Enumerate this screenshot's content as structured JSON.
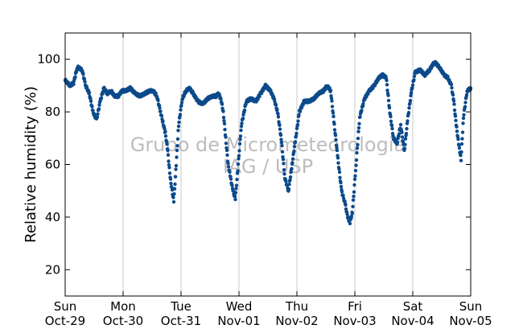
{
  "chart_data": {
    "type": "scatter",
    "title": "",
    "xlabel": "",
    "ylabel": "Relative humidity (%)",
    "watermark": [
      "Grupo de Micrometeorologia",
      "IAG / USP"
    ],
    "ylim": [
      10,
      110
    ],
    "yticks": [
      20,
      40,
      60,
      80,
      100
    ],
    "xlim": [
      "2017-10-29 00:00",
      "2017-11-05 00:00"
    ],
    "xticks": [
      {
        "day": "Sun",
        "date": "Oct-29"
      },
      {
        "day": "Mon",
        "date": "Oct-30"
      },
      {
        "day": "Tue",
        "date": "Oct-31"
      },
      {
        "day": "Wed",
        "date": "Nov-01"
      },
      {
        "day": "Thu",
        "date": "Nov-02"
      },
      {
        "day": "Fri",
        "date": "Nov-03"
      },
      {
        "day": "Sat",
        "date": "Nov-04"
      },
      {
        "day": "Sun",
        "date": "Nov-05"
      }
    ],
    "vertical_grid": true,
    "horizontal_grid": false,
    "marker_color": "#0c4a8a",
    "grid_color": "#c8c8c8",
    "series": [
      {
        "x": [
          "2017-10-29 00:00",
          "2017-10-29 02:00",
          "2017-10-29 03:30",
          "2017-10-29 05:00",
          "2017-10-29 07:00",
          "2017-10-29 08:30",
          "2017-10-29 10:00",
          "2017-10-29 11:30",
          "2017-10-29 13:00",
          "2017-10-29 14:30",
          "2017-10-29 16:00",
          "2017-10-29 17:30",
          "2017-10-29 19:00",
          "2017-10-29 20:30",
          "2017-10-29 22:00",
          "2017-10-29 23:30",
          "2017-10-30 01:00",
          "2017-10-30 03:00",
          "2017-10-30 05:00",
          "2017-10-30 07:00",
          "2017-10-30 09:00",
          "2017-10-30 11:00",
          "2017-10-30 12:30",
          "2017-10-30 14:00",
          "2017-10-30 15:30",
          "2017-10-30 16:30",
          "2017-10-30 17:30",
          "2017-10-30 18:30",
          "2017-10-30 19:30",
          "2017-10-30 21:00",
          "2017-10-30 22:00",
          "2017-10-30 23:00",
          "2017-10-31 00:30",
          "2017-10-31 02:00",
          "2017-10-31 03:30",
          "2017-10-31 05:00",
          "2017-10-31 07:00",
          "2017-10-31 09:00",
          "2017-10-31 11:00",
          "2017-10-31 13:00",
          "2017-10-31 14:30",
          "2017-10-31 15:30",
          "2017-10-31 16:30",
          "2017-10-31 17:30",
          "2017-10-31 18:30",
          "2017-10-31 19:30",
          "2017-10-31 20:30",
          "2017-10-31 21:30",
          "2017-10-31 22:30",
          "2017-10-31 23:30",
          "2017-11-01 01:00",
          "2017-11-01 03:00",
          "2017-11-01 05:00",
          "2017-11-01 07:00",
          "2017-11-01 09:00",
          "2017-11-01 11:00",
          "2017-11-01 13:00",
          "2017-11-01 14:30",
          "2017-11-01 16:00",
          "2017-11-01 17:30",
          "2017-11-01 19:00",
          "2017-11-01 20:30",
          "2017-11-01 22:00",
          "2017-11-01 23:30",
          "2017-11-02 01:00",
          "2017-11-02 03:00",
          "2017-11-02 05:00",
          "2017-11-02 07:00",
          "2017-11-02 09:00",
          "2017-11-02 11:00",
          "2017-11-02 12:30",
          "2017-11-02 14:00",
          "2017-11-02 15:30",
          "2017-11-02 17:00",
          "2017-11-02 18:30",
          "2017-11-02 20:00",
          "2017-11-02 21:00",
          "2017-11-02 22:00",
          "2017-11-02 23:00",
          "2017-11-03 00:30",
          "2017-11-03 02:00",
          "2017-11-03 04:00",
          "2017-11-03 06:00",
          "2017-11-03 08:00",
          "2017-11-03 10:00",
          "2017-11-03 11:30",
          "2017-11-03 13:00",
          "2017-11-03 14:30",
          "2017-11-03 16:00",
          "2017-11-03 17:30",
          "2017-11-03 19:00",
          "2017-11-03 20:30",
          "2017-11-03 22:00",
          "2017-11-03 23:30",
          "2017-11-04 01:00",
          "2017-11-04 03:00",
          "2017-11-04 05:00",
          "2017-11-04 07:00",
          "2017-11-04 09:00",
          "2017-11-04 11:00",
          "2017-11-04 13:00",
          "2017-11-04 14:30",
          "2017-11-04 16:00",
          "2017-11-04 17:00",
          "2017-11-04 18:00",
          "2017-11-04 19:00",
          "2017-11-04 20:00",
          "2017-11-04 21:00",
          "2017-11-04 22:30",
          "2017-11-04 23:59"
        ],
        "y": [
          92,
          90,
          91,
          97,
          96,
          90,
          87,
          80,
          77,
          84,
          89,
          87,
          88,
          86,
          86,
          88,
          88,
          89,
          87,
          86,
          87,
          88,
          88,
          86,
          80,
          76,
          72,
          65,
          55,
          46,
          60,
          75,
          85,
          88,
          89,
          87,
          84,
          83,
          85,
          86,
          86,
          87,
          85,
          80,
          70,
          60,
          55,
          50,
          47,
          58,
          75,
          84,
          85,
          84,
          87,
          90,
          88,
          85,
          80,
          70,
          55,
          50,
          60,
          70,
          80,
          84,
          84,
          85,
          87,
          88,
          90,
          88,
          75,
          62,
          50,
          45,
          40,
          38,
          42,
          60,
          78,
          85,
          88,
          90,
          93,
          94,
          93,
          80,
          70,
          68,
          75,
          65,
          78,
          88,
          95,
          96,
          94,
          96,
          99,
          97,
          94,
          93,
          90,
          84,
          75,
          68,
          62,
          78,
          88,
          89
        ]
      }
    ]
  }
}
